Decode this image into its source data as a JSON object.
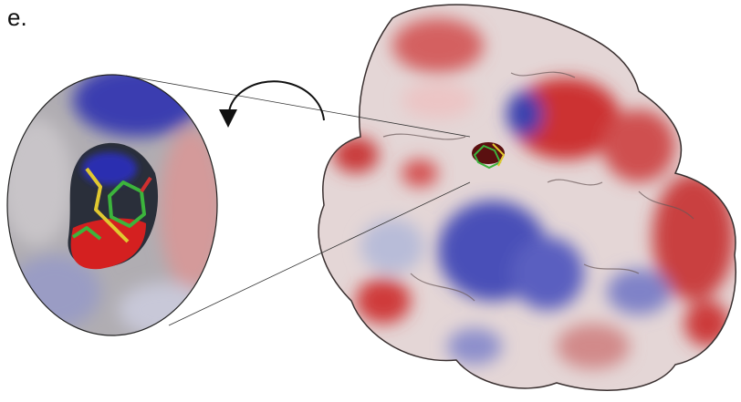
{
  "panel": {
    "label": "e."
  }
}
